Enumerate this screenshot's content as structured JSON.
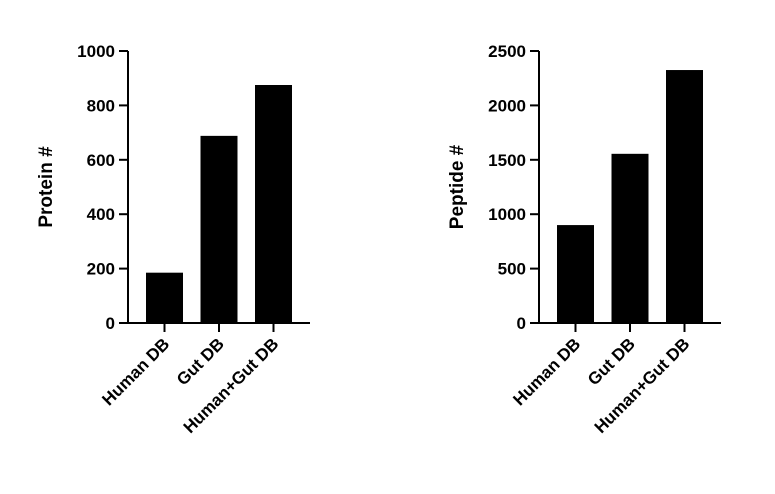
{
  "chart_data": [
    {
      "type": "bar",
      "title": "",
      "xlabel": "",
      "ylabel": "Protein #",
      "categories": [
        "Human DB",
        "Gut DB",
        "Human+Gut DB"
      ],
      "values": [
        185,
        688,
        875
      ],
      "ylim": [
        0,
        1000
      ],
      "yticks": [
        "0",
        "200",
        "400",
        "600",
        "800",
        "1000"
      ],
      "grid": false,
      "bar_color": "#000000"
    },
    {
      "type": "bar",
      "title": "",
      "xlabel": "",
      "ylabel": "Peptide #",
      "categories": [
        "Human DB",
        "Gut DB",
        "Human+Gut DB"
      ],
      "values": [
        900,
        1555,
        2325
      ],
      "ylim": [
        0,
        2500
      ],
      "yticks": [
        "0",
        "500",
        "1000",
        "1500",
        "2000",
        "2500"
      ],
      "grid": false,
      "bar_color": "#000000"
    }
  ]
}
